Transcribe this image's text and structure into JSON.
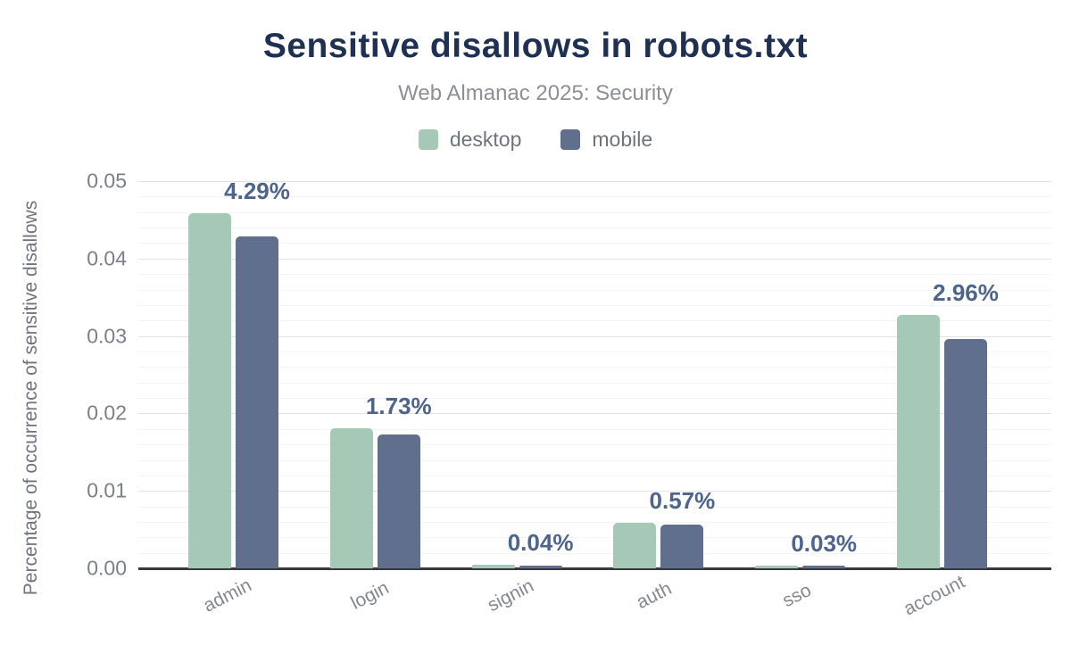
{
  "title": "Sensitive disallows in robots.txt",
  "subtitle": "Web Almanac 2025: Security",
  "colors": {
    "title": "#1f3052",
    "subtitle": "#8b9097",
    "desktop": "#a5c9b6",
    "mobile": "#5f6f8d",
    "data_label": "#4e648a",
    "axis_line": "#38393d",
    "grid_major": "#e3e3e6",
    "grid_minor": "#f4f4f6",
    "tick_text": "#7b8086"
  },
  "chart_data": {
    "type": "bar",
    "title": "Sensitive disallows in robots.txt",
    "subtitle": "Web Almanac 2025: Security",
    "categories": [
      "admin",
      "login",
      "signin",
      "auth",
      "sso",
      "account"
    ],
    "series": [
      {
        "name": "desktop",
        "color": "#a5c9b6",
        "values": [
          0.0459,
          0.0181,
          0.0005,
          0.0059,
          0.0003,
          0.0327
        ]
      },
      {
        "name": "mobile",
        "color": "#5f6f8d",
        "values": [
          0.0429,
          0.0173,
          0.0004,
          0.0057,
          0.0003,
          0.0296
        ]
      }
    ],
    "bar_labels": [
      "4.29%",
      "1.73%",
      "0.04%",
      "0.57%",
      "0.03%",
      "2.96%"
    ],
    "bar_labels_refer_to": "mobile",
    "xlabel": "",
    "ylabel": "Percentage of occurrence of sensitive disallows",
    "ylim": [
      0,
      0.05
    ],
    "yticks": [
      "0.00",
      "0.01",
      "0.02",
      "0.03",
      "0.04",
      "0.05"
    ],
    "minor_grid_step": 0.002,
    "grid": "horizontal",
    "legend_position": "top-center"
  }
}
